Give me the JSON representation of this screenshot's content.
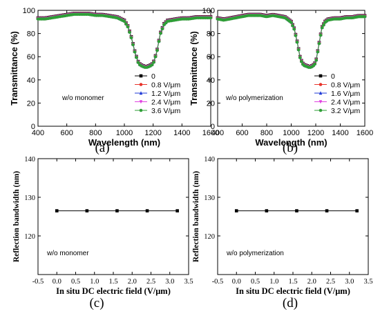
{
  "chart_data": [
    {
      "type": "line",
      "xlabel": "Wavelength (nm)",
      "ylabel": "Transmittance (%)",
      "xlim": [
        400,
        1600
      ],
      "ylim": [
        0,
        100
      ],
      "xticks": [
        "400",
        "600",
        "800",
        "1000",
        "1200",
        "1400",
        "1600"
      ],
      "yticks": [
        "0",
        "20",
        "40",
        "60",
        "80",
        "100"
      ],
      "annotation": "w/o monomer",
      "panel_label": "(a)",
      "series": [
        {
          "name": "0",
          "color": "#000000",
          "marker": "square"
        },
        {
          "name": "0.8 V/μm",
          "color": "#e8322a",
          "marker": "circle"
        },
        {
          "name": "1.2 V/μm",
          "color": "#1f3ad6",
          "marker": "triangle"
        },
        {
          "name": "2.4 V/μm",
          "color": "#e040e0",
          "marker": "triangle-down"
        },
        {
          "name": "3.6 V/μm",
          "color": "#2e9e36",
          "marker": "circle"
        }
      ],
      "x": [
        400,
        450,
        500,
        550,
        600,
        650,
        700,
        750,
        800,
        850,
        900,
        950,
        1000,
        1025,
        1050,
        1075,
        1100,
        1125,
        1150,
        1175,
        1200,
        1225,
        1250,
        1275,
        1300,
        1350,
        1400,
        1450,
        1500,
        1550,
        1600
      ],
      "curve": [
        93,
        93,
        94,
        95,
        96,
        97,
        97,
        97,
        96,
        96,
        95,
        94,
        91,
        86,
        76,
        63,
        54,
        52,
        51,
        52,
        54,
        64,
        80,
        88,
        91,
        92,
        93,
        93,
        94,
        94,
        94
      ]
    },
    {
      "type": "line",
      "xlabel": "Wavelength (nm)",
      "ylabel": "Transmittance (%)",
      "xlim": [
        400,
        1600
      ],
      "ylim": [
        0,
        100
      ],
      "xticks": [
        "400",
        "600",
        "800",
        "1000",
        "1200",
        "1400",
        "1600"
      ],
      "yticks": [
        "0",
        "20",
        "40",
        "60",
        "80",
        "100"
      ],
      "annotation": "w/o polymerization",
      "panel_label": "(b)",
      "series": [
        {
          "name": "0",
          "color": "#000000",
          "marker": "square"
        },
        {
          "name": "0.8 V/μm",
          "color": "#e8322a",
          "marker": "circle"
        },
        {
          "name": "1.6 V/μm",
          "color": "#1f3ad6",
          "marker": "triangle"
        },
        {
          "name": "2.4 V/μm",
          "color": "#e040e0",
          "marker": "triangle-down"
        },
        {
          "name": "3.2 V/μm",
          "color": "#2e9e36",
          "marker": "circle"
        }
      ],
      "x": [
        400,
        450,
        500,
        550,
        600,
        650,
        700,
        750,
        800,
        850,
        900,
        950,
        1000,
        1025,
        1050,
        1075,
        1100,
        1125,
        1150,
        1175,
        1200,
        1225,
        1250,
        1275,
        1300,
        1350,
        1400,
        1450,
        1500,
        1550,
        1600
      ],
      "curve": [
        93,
        92,
        93,
        94,
        95,
        96,
        96,
        96,
        95,
        96,
        95,
        94,
        90,
        84,
        72,
        58,
        53,
        52,
        51,
        52,
        55,
        70,
        85,
        90,
        92,
        93,
        93,
        94,
        94,
        95,
        95
      ]
    },
    {
      "type": "line",
      "xlabel": "In situ DC electric field (V/μm)",
      "ylabel": "Reflection bandwidth (nm)",
      "xlim": [
        -0.5,
        3.5
      ],
      "ylim": [
        110,
        140
      ],
      "xticks": [
        "-0.5",
        "0.0",
        "0.5",
        "1.0",
        "1.5",
        "2.0",
        "2.5",
        "3.0",
        "3.5"
      ],
      "yticks": [
        "120",
        "130",
        "140"
      ],
      "annotation": "w/o monomer",
      "panel_label": "(c)",
      "x": [
        0,
        0.8,
        1.6,
        2.4,
        3.2
      ],
      "y": [
        126.5,
        126.5,
        126.5,
        126.5,
        126.5
      ]
    },
    {
      "type": "line",
      "xlabel": "In situ DC electric field (V/μm)",
      "ylabel": "Reflection bandwidth (nm)",
      "xlim": [
        -0.5,
        3.5
      ],
      "ylim": [
        110,
        140
      ],
      "xticks": [
        "-0.5",
        "0.0",
        "0.5",
        "1.0",
        "1.5",
        "2.0",
        "2.5",
        "3.0",
        "3.5"
      ],
      "yticks": [
        "120",
        "130",
        "140"
      ],
      "annotation": "w/o polymerization",
      "panel_label": "(d)",
      "x": [
        0,
        0.8,
        1.6,
        2.4,
        3.2
      ],
      "y": [
        126.5,
        126.5,
        126.5,
        126.5,
        126.5
      ]
    }
  ]
}
